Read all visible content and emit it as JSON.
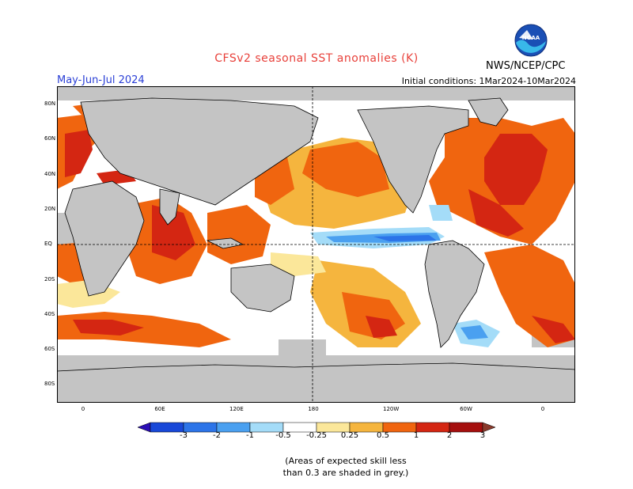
{
  "header": {
    "title": "CFSv2 seasonal SST anomalies (K)",
    "season": "May-Jun-Jul 2024",
    "initial_conditions": "Initial conditions: 1Mar2024-10Mar2024",
    "agency": "NWS/NCEP/CPC",
    "logo_text": "NOAA",
    "logo_icon": "noaa-logo-icon"
  },
  "map": {
    "lat_labels": [
      "80N",
      "60N",
      "40N",
      "20N",
      "EQ",
      "20S",
      "40S",
      "60S",
      "80S"
    ],
    "lon_labels": [
      "0",
      "60E",
      "120E",
      "180",
      "120W",
      "60W",
      "0"
    ],
    "colors": {
      "land": "#c4c4c4",
      "ocean_background": "#ffffff",
      "coast": "#000000"
    }
  },
  "legend": {
    "ticks": [
      "-3",
      "-2",
      "-1",
      "-0.5",
      "-0.25",
      "0.25",
      "0.5",
      "1",
      "2",
      "3"
    ],
    "colors": [
      "#2b0fb5",
      "#1848d8",
      "#2c74e8",
      "#4aa0f0",
      "#a4dcf8",
      "#ffffff",
      "#fbe79a",
      "#f5b53e",
      "#f0650f",
      "#d42612",
      "#a50f0e",
      "#8a3a2c"
    ]
  },
  "notes": {
    "line1": "(Areas of expected skill less",
    "line2": "than 0.3 are shaded in grey.)"
  }
}
